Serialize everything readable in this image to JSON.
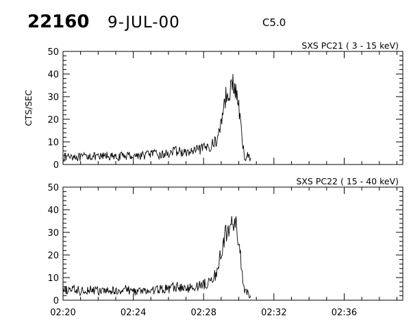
{
  "header": {
    "event_number": "22160",
    "date": "9-JUL-00",
    "flare_class": "C5.0"
  },
  "chart_data": [
    {
      "type": "line",
      "title": "SXS PC21  (  3 - 15 keV)",
      "ylabel": "CTS/SEC",
      "xlabel": "",
      "ylim": [
        0,
        50
      ],
      "xlim": [
        "02:20",
        "02:39:20"
      ],
      "yticks": [
        "0",
        "10",
        "20",
        "30",
        "40",
        "50"
      ],
      "xticks": [
        "02:20",
        "02:24",
        "02:28",
        "02:32",
        "02:36"
      ],
      "series": [
        {
          "x": [
            "02:20:00",
            "02:20:30",
            "02:21:00",
            "02:21:30",
            "02:22:00",
            "02:22:30",
            "02:23:00",
            "02:23:30",
            "02:24:00",
            "02:24:30",
            "02:25:00",
            "02:25:30",
            "02:26:00",
            "02:26:30",
            "02:27:00",
            "02:27:30",
            "02:28:00",
            "02:28:20",
            "02:28:40",
            "02:28:50",
            "02:29:00",
            "02:29:10",
            "02:29:20",
            "02:29:30",
            "02:29:40",
            "02:29:50",
            "02:30:00",
            "02:30:10",
            "02:30:20",
            "02:30:30",
            "02:30:40"
          ],
          "values": [
            3,
            4,
            3,
            4,
            3,
            4,
            3,
            4,
            4,
            4,
            5,
            4,
            5,
            6,
            5,
            6,
            7,
            8,
            10,
            12,
            19,
            28,
            31,
            34,
            35,
            32,
            26,
            12,
            3,
            4,
            3
          ]
        }
      ]
    },
    {
      "type": "line",
      "title": "SXS PC22  ( 15 - 40 keV)",
      "ylabel": "",
      "xlabel": "",
      "ylim": [
        0,
        50
      ],
      "xlim": [
        "02:20",
        "02:39:20"
      ],
      "yticks": [
        "0",
        "10",
        "20",
        "30",
        "40",
        "50"
      ],
      "xticks": [
        "02:20",
        "02:24",
        "02:28",
        "02:32",
        "02:36"
      ],
      "series": [
        {
          "x": [
            "02:20:00",
            "02:20:30",
            "02:21:00",
            "02:21:30",
            "02:22:00",
            "02:22:30",
            "02:23:00",
            "02:23:30",
            "02:24:00",
            "02:24:30",
            "02:25:00",
            "02:25:30",
            "02:26:00",
            "02:26:30",
            "02:27:00",
            "02:27:30",
            "02:28:00",
            "02:28:20",
            "02:28:40",
            "02:28:50",
            "02:29:00",
            "02:29:10",
            "02:29:20",
            "02:29:30",
            "02:29:40",
            "02:29:50",
            "02:30:00",
            "02:30:10",
            "02:30:20",
            "02:30:30",
            "02:30:40"
          ],
          "values": [
            4,
            5,
            4,
            5,
            4,
            4,
            4,
            5,
            4,
            4,
            4,
            5,
            5,
            6,
            5,
            6,
            7,
            8,
            11,
            14,
            22,
            27,
            30,
            33,
            34,
            33,
            27,
            13,
            4,
            3,
            2
          ]
        }
      ]
    }
  ]
}
